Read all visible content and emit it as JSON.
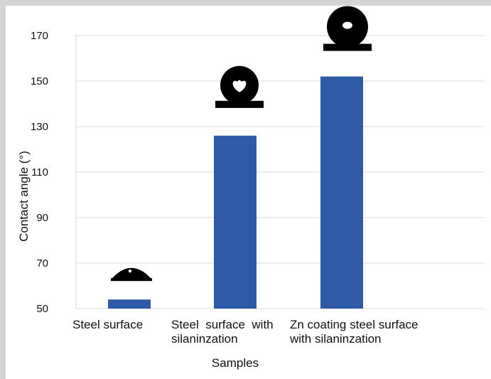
{
  "chart_data": {
    "type": "bar",
    "title": "",
    "xlabel": "Samples",
    "ylabel": "Contact angle (°)",
    "categories": [
      [
        "Steel surface"
      ],
      [
        "Steel  surface  with",
        "silaninzation"
      ],
      [
        "Zn coating steel surface",
        "with silaninzation"
      ]
    ],
    "values": [
      54,
      126,
      152
    ],
    "ylim": [
      50,
      180
    ],
    "yticks": [
      50,
      70,
      90,
      110,
      130,
      150,
      170
    ],
    "bar_color": "#2e5aa8",
    "grid": "horizontal",
    "legend": "none",
    "droplet_icons": [
      "droplet-low-contact-icon",
      "droplet-high-contact-icon",
      "droplet-superhydrophobic-icon"
    ]
  }
}
